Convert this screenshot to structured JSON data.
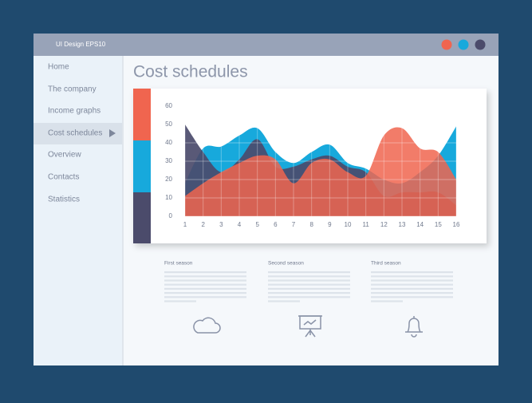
{
  "window": {
    "title": "UI Design EPS10"
  },
  "nav": {
    "items": [
      "Home",
      "The company",
      "Income graphs",
      "Cost schedules",
      "Overview",
      "Contacts",
      "Statistics"
    ]
  },
  "page_title": "Cost schedules",
  "chart_data": {
    "type": "area",
    "categories": [
      "1",
      "2",
      "3",
      "4",
      "5",
      "6",
      "7",
      "8",
      "9",
      "10",
      "11",
      "12",
      "13",
      "14",
      "15",
      "16"
    ],
    "ylim": [
      0,
      60
    ],
    "yticks": [
      0,
      10,
      20,
      30,
      40,
      50,
      60
    ],
    "grid": true,
    "series": [
      {
        "color": "#17a9dc",
        "values": [
          18,
          37,
          38,
          44,
          48,
          35,
          29,
          35,
          39,
          29,
          26,
          20,
          18,
          24,
          33,
          49
        ]
      },
      {
        "color": "#4b4b6b",
        "values": [
          50,
          35,
          24,
          31,
          42,
          27,
          27,
          31,
          33,
          27,
          24,
          11,
          13,
          13,
          13,
          6
        ]
      },
      {
        "color": "#f0654f",
        "values": [
          11,
          18,
          24,
          29,
          33,
          31,
          18,
          29,
          31,
          24,
          22,
          44,
          48,
          37,
          35,
          20
        ]
      }
    ]
  },
  "seasons": [
    {
      "title": "First season"
    },
    {
      "title": "Second season"
    },
    {
      "title": "Third season"
    }
  ]
}
